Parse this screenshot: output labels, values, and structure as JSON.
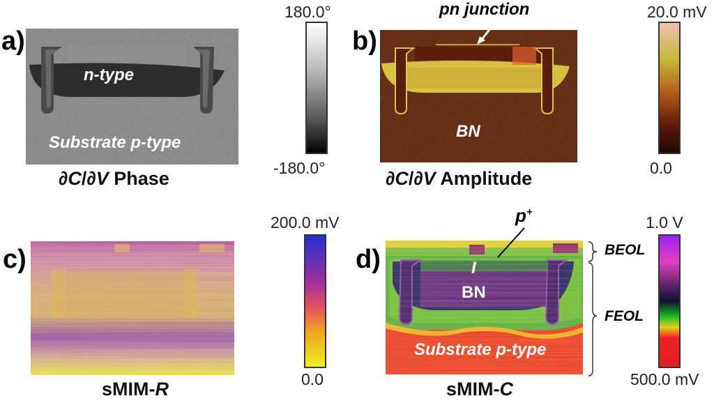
{
  "panels": {
    "a": {
      "label": "a)",
      "caption_prefix": "∂",
      "caption_c": "C",
      "caption_mid": "/∂",
      "caption_v": "V",
      "caption_suffix": " Phase",
      "overlay_ntype": "n-type",
      "overlay_substrate": "Substrate p-type",
      "colorbar_max": "180.0°",
      "colorbar_min": "-180.0°"
    },
    "b": {
      "label": "b)",
      "caption_prefix": "∂",
      "caption_c": "C",
      "caption_mid": "/∂",
      "caption_v": "V",
      "caption_suffix": " Amplitude",
      "annotation_junction": "pn junction",
      "overlay_bn": "BN",
      "colorbar_max": "20.0 mV",
      "colorbar_min": "0.0"
    },
    "c": {
      "label": "c)",
      "caption_prefix": "sMIM-",
      "caption_r": "R",
      "colorbar_max": "200.0 mV",
      "colorbar_min": "0.0"
    },
    "d": {
      "label": "d)",
      "caption_prefix": "sMIM-",
      "caption_c": "C",
      "annotation_p": "p",
      "annotation_p_sup": "+",
      "overlay_i": "I",
      "overlay_bn": "BN",
      "overlay_substrate": "Substrate p-type",
      "beol": "BEOL",
      "feol": "FEOL",
      "colorbar_max": "1.0 V",
      "colorbar_min": "500.0 mV"
    }
  },
  "colors": {
    "phase_bg": "#7a7a7a",
    "amplitude_bg": "#4a1608",
    "amplitude_bright": "#d8c043",
    "smim_r_bg": "#b868a8",
    "smim_c_bg": "#e83a20"
  }
}
